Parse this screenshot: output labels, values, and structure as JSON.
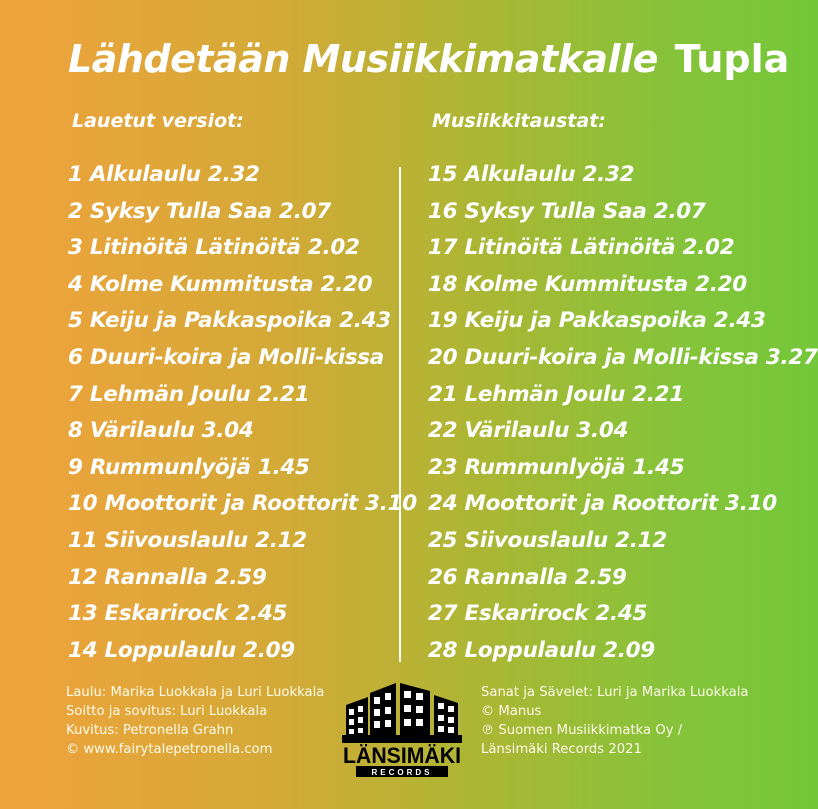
{
  "title": {
    "main": "Lähdetään Musiikkimatkalle",
    "suffix": "Tupla"
  },
  "left_column": {
    "heading": "Lauetut versiot:",
    "tracks": [
      "1 Alkulaulu 2.32",
      "2 Syksy Tulla Saa 2.07",
      "3 Litinöitä Lätinöitä 2.02",
      "4 Kolme Kummitusta 2.20",
      "5 Keiju ja Pakkaspoika 2.43",
      "6 Duuri-koira ja Molli-kissa",
      "7 Lehmän Joulu 2.21",
      "8 Värilaulu 3.04",
      "9 Rummunlyöjä 1.45",
      "10 Moottorit ja Roottorit 3.10",
      "11 Siivouslaulu 2.12",
      "12 Rannalla 2.59",
      "13 Eskarirock 2.45",
      "14 Loppulaulu 2.09"
    ]
  },
  "right_column": {
    "heading": "Musiikkitaustat:",
    "tracks": [
      "15 Alkulaulu 2.32",
      "16 Syksy Tulla Saa 2.07",
      "17 Litinöitä Lätinöitä 2.02",
      "18 Kolme Kummitusta 2.20",
      "19 Keiju ja Pakkaspoika 2.43",
      "20 Duuri-koira ja Molli-kissa 3.27",
      "21 Lehmän Joulu 2.21",
      "22 Värilaulu 3.04",
      "23 Rummunlyöjä 1.45",
      "24 Moottorit ja Roottorit 3.10",
      "25 Siivouslaulu 2.12",
      "26 Rannalla 2.59",
      "27 Eskarirock 2.45",
      "28 Loppulaulu 2.09"
    ]
  },
  "credits_left": [
    "Laulu: Marika Luokkala ja Luri Luokkala",
    "Soitto ja sovitus: Luri Luokkala",
    "Kuvitus: Petronella Grahn",
    "© www.fairytalepetronella.com"
  ],
  "credits_right": [
    "Sanat ja Sävelet: Luri ja Marika Luokkala",
    "© Manus",
    "℗ Suomen Musiikkimatka Oy /",
    "Länsimäki Records 2021"
  ],
  "logo": {
    "name": "LÄNSIMÄKI",
    "sub": "RECORDS",
    "icon": "building-icon"
  },
  "colors": {
    "gradient_left": "#f0a23c",
    "gradient_right": "#74c73a",
    "text": "#ffffff",
    "logo": "#000000"
  }
}
